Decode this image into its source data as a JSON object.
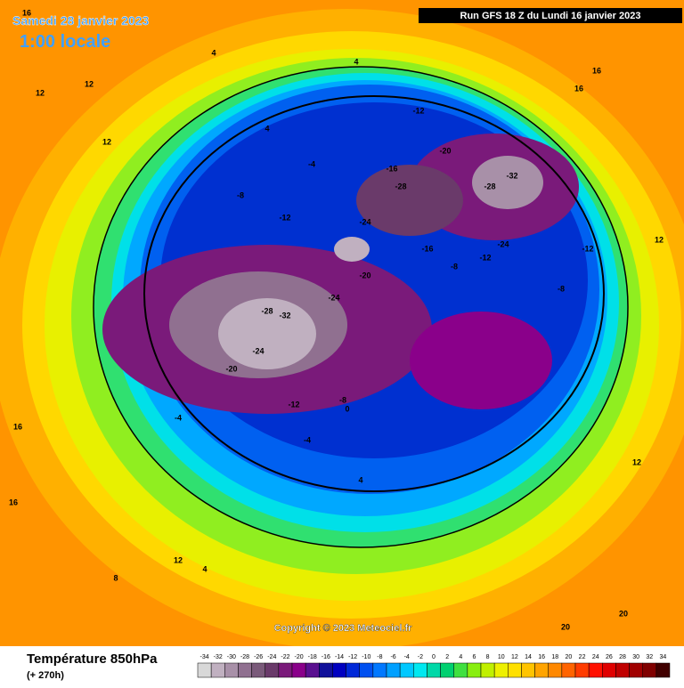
{
  "header": {
    "date": "Samedi 28 janvier 2023",
    "local_time": "1:00 locale",
    "run": "Run GFS 18 Z du Lundi 16 janvier 2023"
  },
  "copyright": "Copyright © 2023 Meteociel.fr",
  "footer": {
    "title": "Température 850hPa",
    "lead": "(+ 270h)"
  },
  "scale": {
    "ticks": [
      -34,
      -32,
      -30,
      -28,
      -26,
      -24,
      -22,
      -20,
      -18,
      -16,
      -14,
      -12,
      -10,
      -8,
      -6,
      -4,
      -2,
      0,
      2,
      4,
      6,
      8,
      10,
      12,
      14,
      16,
      18,
      20,
      22,
      24,
      26,
      28,
      30,
      32,
      34
    ],
    "colors": [
      "#d8d8d8",
      "#c0b0c0",
      "#a890a8",
      "#907090",
      "#7a5a7a",
      "#6a3a6a",
      "#7a1a7a",
      "#8a008a",
      "#5a1090",
      "#10109a",
      "#0000c0",
      "#0028d8",
      "#0050f0",
      "#0078ff",
      "#00a0ff",
      "#00c8ff",
      "#00e8f0",
      "#00d8a8",
      "#00d070",
      "#40e040",
      "#88ee10",
      "#c0f000",
      "#eef000",
      "#ffe000",
      "#ffc400",
      "#ffa400",
      "#ff8800",
      "#ff6400",
      "#ff3c00",
      "#ff1000",
      "#e00000",
      "#c00000",
      "#a00000",
      "#800000",
      "#400000"
    ]
  },
  "contour_labels": [
    16,
    12,
    12,
    12,
    4,
    4,
    4,
    -4,
    -8,
    -12,
    -12,
    -16,
    -20,
    -24,
    -28,
    -32,
    -28,
    -24,
    -20,
    -16,
    -12,
    -8,
    -4,
    -24,
    -28,
    -32,
    -20,
    -24,
    -12,
    -8,
    -4,
    0,
    4,
    4,
    8,
    12,
    16,
    16,
    20,
    20,
    12,
    12,
    -8,
    -12,
    16,
    16
  ]
}
